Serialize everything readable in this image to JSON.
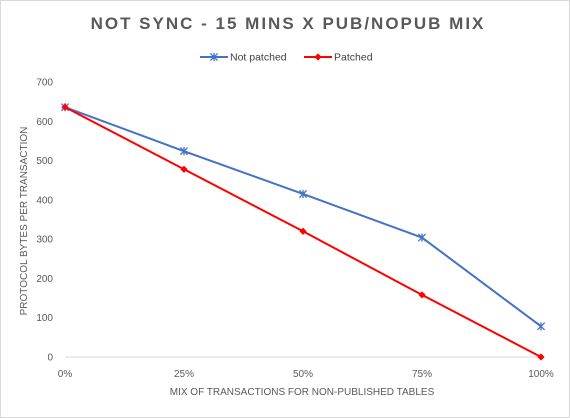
{
  "chart_data": {
    "type": "line",
    "title": "NOT SYNC - 15 MINS X PUB/NOPUB MIX",
    "xlabel": "MIX OF TRANSACTIONS FOR NON-PUBLISHED TABLES",
    "ylabel": "PROTOCOL BYTES PER TRANSACTION",
    "categories": [
      "0%",
      "25%",
      "50%",
      "75%",
      "100%"
    ],
    "ylim": [
      0,
      700
    ],
    "yticks": [
      0,
      100,
      200,
      300,
      400,
      500,
      600,
      700
    ],
    "grid": false,
    "legend_position": "top",
    "series": [
      {
        "name": "Not patched",
        "values": [
          636,
          524,
          415,
          304,
          78
        ],
        "color": "#4472c4",
        "marker": "star"
      },
      {
        "name": "Patched",
        "values": [
          636,
          478,
          320,
          158,
          0
        ],
        "color": "#ff0000",
        "marker": "diamond"
      }
    ]
  }
}
